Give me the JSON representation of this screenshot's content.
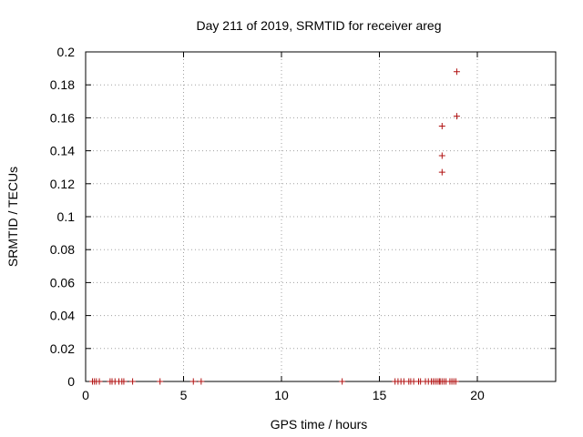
{
  "chart_data": {
    "type": "scatter",
    "title": "Day 211 of 2019, SRMTID for receiver areg",
    "xlabel": "GPS time / hours",
    "ylabel": "SRMTID / TECUs",
    "xlim": [
      0,
      24
    ],
    "ylim": [
      0,
      0.2
    ],
    "x_ticks": [
      0,
      5,
      10,
      15,
      20
    ],
    "y_ticks": [
      0,
      0.02,
      0.04,
      0.06,
      0.08,
      0.1,
      0.12,
      0.14,
      0.16,
      0.18,
      0.2
    ],
    "y_tick_labels": [
      "0",
      "0.02",
      "0.04",
      "0.06",
      "0.08",
      "0.1",
      "0.12",
      "0.14",
      "0.16",
      "0.18",
      "0.2"
    ],
    "grid": true,
    "marker": "+",
    "color": "#b01010",
    "series": [
      {
        "name": "SRMTID",
        "points": [
          [
            0.35,
            0
          ],
          [
            0.45,
            0
          ],
          [
            0.55,
            0
          ],
          [
            0.7,
            0
          ],
          [
            1.25,
            0
          ],
          [
            1.35,
            0
          ],
          [
            1.5,
            0
          ],
          [
            1.7,
            0
          ],
          [
            1.85,
            0
          ],
          [
            1.95,
            0
          ],
          [
            2.4,
            0
          ],
          [
            3.8,
            0
          ],
          [
            5.5,
            0
          ],
          [
            5.9,
            0
          ],
          [
            13.1,
            0
          ],
          [
            15.8,
            0
          ],
          [
            15.95,
            0
          ],
          [
            16.1,
            0
          ],
          [
            16.25,
            0
          ],
          [
            16.5,
            0
          ],
          [
            16.6,
            0
          ],
          [
            16.75,
            0
          ],
          [
            17.0,
            0
          ],
          [
            17.1,
            0
          ],
          [
            17.35,
            0
          ],
          [
            17.5,
            0
          ],
          [
            17.65,
            0
          ],
          [
            17.75,
            0
          ],
          [
            17.85,
            0
          ],
          [
            17.95,
            0
          ],
          [
            18.05,
            0
          ],
          [
            18.1,
            0
          ],
          [
            18.2,
            0
          ],
          [
            18.3,
            0
          ],
          [
            18.4,
            0
          ],
          [
            18.6,
            0
          ],
          [
            18.7,
            0
          ],
          [
            18.8,
            0
          ],
          [
            18.9,
            0
          ],
          [
            18.2,
            0.127
          ],
          [
            18.2,
            0.137
          ],
          [
            18.2,
            0.155
          ],
          [
            18.95,
            0.161
          ],
          [
            18.95,
            0.188
          ]
        ]
      }
    ]
  }
}
